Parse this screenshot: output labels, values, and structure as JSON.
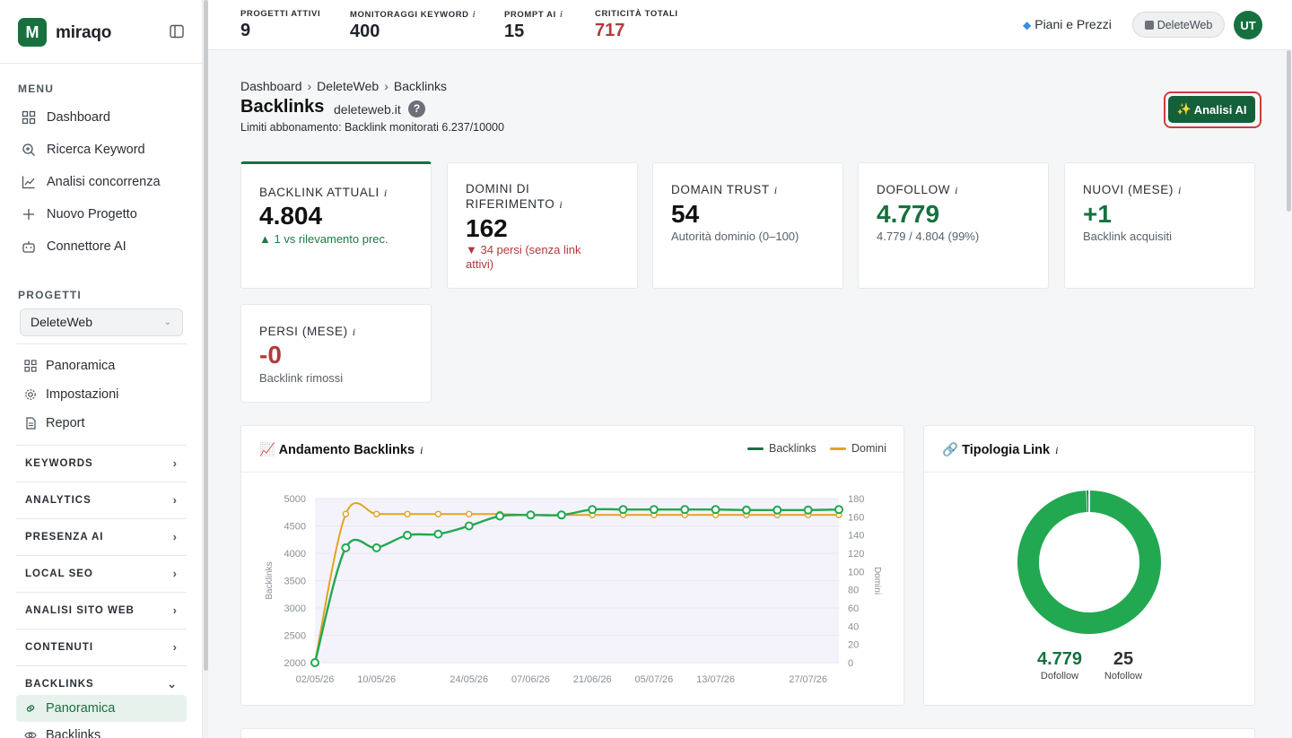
{
  "brand": {
    "name": "miraqo",
    "logo_letter": "M"
  },
  "sidebar": {
    "menu_label": "MENU",
    "menu": [
      {
        "label": "Dashboard",
        "icon": "grid-icon"
      },
      {
        "label": "Ricerca Keyword",
        "icon": "search-plus-icon"
      },
      {
        "label": "Analisi concorrenza",
        "icon": "chart-line-icon"
      },
      {
        "label": "Nuovo Progetto",
        "icon": "plus-icon"
      },
      {
        "label": "Connettore AI",
        "icon": "robot-icon"
      }
    ],
    "projects_label": "PROGETTI",
    "project_selected": "DeleteWeb",
    "project_links": [
      {
        "label": "Panoramica",
        "icon": "grid-icon"
      },
      {
        "label": "Impostazioni",
        "icon": "gear-icon"
      },
      {
        "label": "Report",
        "icon": "document-icon"
      }
    ],
    "groups": [
      "KEYWORDS",
      "ANALYTICS",
      "PRESENZA AI",
      "LOCAL SEO",
      "ANALISI SITO WEB",
      "CONTENUTI",
      "BACKLINKS"
    ],
    "backlinks_sub": [
      {
        "label": "Panoramica",
        "icon": "link-icon",
        "active": true
      },
      {
        "label": "Backlinks",
        "icon": "eye-icon",
        "active": false
      }
    ]
  },
  "topbar": {
    "stats": [
      {
        "label": "PROGETTI ATTIVI",
        "value": "9",
        "info": ""
      },
      {
        "label": "MONITORAGGI KEYWORD",
        "value": "400",
        "info": "i"
      },
      {
        "label": "PROMPT AI",
        "value": "15",
        "info": "i"
      },
      {
        "label": "CRITICITÀ TOTALI",
        "value": "717",
        "info": ""
      }
    ],
    "plans_label": "Piani e Prezzi",
    "account_label": "DeleteWeb",
    "avatar": "UT"
  },
  "header": {
    "breadcrumb": [
      "Dashboard",
      "DeleteWeb",
      "Backlinks"
    ],
    "title": "Backlinks",
    "domain": "deleteweb.it",
    "help": "?",
    "limits": "Limiti abbonamento: Backlink monitorati 6.237/10000",
    "ai_button": "Analisi AI",
    "ai_icon": "✨"
  },
  "kpis": [
    {
      "label": "BACKLINK ATTUALI",
      "value": "4.804",
      "sub": "▲ 1 vs rilevamento prec.",
      "tone": "green-sub"
    },
    {
      "label": "DOMINI DI RIFERIMENTO",
      "value": "162",
      "sub": "▼ 34 persi (senza link attivi)",
      "tone": "red-sub"
    },
    {
      "label": "DOMAIN TRUST",
      "value": "54",
      "sub": "Autorità dominio (0–100)",
      "tone": ""
    },
    {
      "label": "DOFOLLOW",
      "value": "4.779",
      "sub": "4.779 / 4.804 (99%)",
      "tone": "green-val"
    },
    {
      "label": "NUOVI (MESE)",
      "value": "+1",
      "sub": "Backlink acquisiti",
      "tone": "green-val"
    },
    {
      "label": "PERSI (MESE)",
      "value": "-0",
      "sub": "Backlink rimossi",
      "tone": "red-val"
    }
  ],
  "info_mark": "i",
  "trend_panel": {
    "title": "Andamento Backlinks",
    "icon": "📈",
    "legend": [
      "Backlinks",
      "Domini"
    ]
  },
  "type_panel": {
    "title": "Tipologia Link",
    "icon": "🔗"
  },
  "colors": {
    "brand": "#16713f",
    "backlinks_line": "#22a851",
    "domini_line": "#e3a320",
    "alert": "#b23a3a"
  },
  "chart_data": [
    {
      "type": "line",
      "title": "Andamento Backlinks",
      "x": [
        "02/05/26",
        "06/05/26",
        "10/05/26",
        "14/05/26",
        "18/05/26",
        "24/05/26",
        "31/05/26",
        "07/06/26",
        "14/06/26",
        "21/06/26",
        "28/06/26",
        "05/07/26",
        "09/07/26",
        "13/07/26",
        "20/07/26",
        "23/07/26",
        "27/07/26",
        "01/08/26"
      ],
      "x_tick_labels": [
        "02/05/26",
        "10/05/26",
        "24/05/26",
        "07/06/26",
        "21/06/26",
        "05/07/26",
        "13/07/26",
        "27/07/26"
      ],
      "series": [
        {
          "name": "Backlinks",
          "axis": "left",
          "values": [
            2000,
            4100,
            4100,
            4330,
            4350,
            4500,
            4680,
            4700,
            4700,
            4800,
            4800,
            4800,
            4800,
            4800,
            4790,
            4790,
            4790,
            4800
          ]
        },
        {
          "name": "Domini",
          "axis": "right",
          "values": [
            0,
            163,
            163,
            163,
            163,
            163,
            163,
            162,
            162,
            162,
            162,
            162,
            162,
            162,
            162,
            162,
            162,
            162
          ]
        }
      ],
      "ylabel": "Backlinks",
      "ylim": [
        2000,
        5000
      ],
      "y_ticks": [
        2000,
        2500,
        3000,
        3500,
        4000,
        4500,
        5000
      ],
      "y2label": "Domini",
      "y2lim": [
        0,
        180
      ],
      "y2_ticks": [
        0,
        20,
        40,
        60,
        80,
        100,
        120,
        140,
        160,
        180
      ],
      "legend": "top-right",
      "grid": true
    },
    {
      "type": "pie",
      "title": "Tipologia Link",
      "slices": [
        {
          "name": "Dofollow",
          "value": 4779,
          "label": "4.779"
        },
        {
          "name": "Nofollow",
          "value": 25,
          "label": "25"
        }
      ]
    }
  ]
}
